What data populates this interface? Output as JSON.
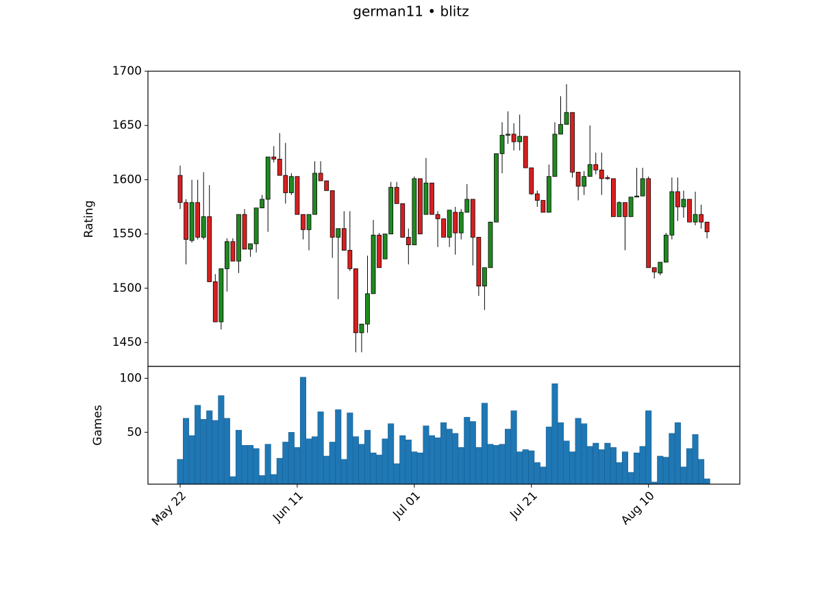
{
  "chart_data": [
    {
      "type": "candlestick",
      "title": "german11 • blitz",
      "ylabel": "Rating",
      "x": [
        0,
        1,
        2,
        3,
        4,
        5,
        6,
        7,
        8,
        9,
        10,
        11,
        12,
        13,
        14,
        15,
        16,
        17,
        18,
        19,
        20,
        21,
        22,
        23,
        24,
        25,
        26,
        27,
        28,
        29,
        30,
        31,
        32,
        33,
        34,
        35,
        36,
        37,
        38,
        39,
        40,
        41,
        42,
        43,
        44,
        45,
        46,
        47,
        48,
        49,
        50,
        51,
        52,
        53,
        54,
        55,
        56,
        57,
        58,
        59,
        60,
        61,
        62,
        63,
        64,
        65,
        66,
        67,
        68,
        69,
        70,
        71,
        72,
        73,
        74,
        75,
        76,
        77,
        78,
        79,
        80,
        81,
        82,
        83,
        84,
        85,
        86,
        87,
        88,
        89,
        90
      ],
      "open": [
        1604,
        1579,
        1544,
        1579,
        1547,
        1566,
        1506,
        1469,
        1518,
        1543,
        1525,
        1568,
        1536,
        1541,
        1574,
        1582,
        1621,
        1619,
        1604,
        1588,
        1603,
        1568,
        1554,
        1568,
        1606,
        1599,
        1590,
        1547,
        1555,
        1535,
        1518,
        1459,
        1467,
        1495,
        1549,
        1527,
        1550,
        1593,
        1578,
        1547,
        1540,
        1601,
        1568,
        1597,
        1568,
        1564,
        1547,
        1570,
        1551,
        1570,
        1582,
        1547,
        1502,
        1519,
        1561,
        1624,
        1641,
        1642,
        1635,
        1640,
        1611,
        1587,
        1581,
        1570,
        1603,
        1642,
        1651,
        1662,
        1607,
        1594,
        1603,
        1614,
        1609,
        1602,
        1601,
        1566,
        1579,
        1566,
        1584,
        1585,
        1601,
        1519,
        1514,
        1524,
        1549,
        1589,
        1575,
        1582,
        1561,
        1568,
        1561
      ],
      "high": [
        1613,
        1582,
        1600,
        1600,
        1607,
        1595,
        1513,
        1518,
        1546,
        1546,
        1568,
        1573,
        1541,
        1574,
        1586,
        1621,
        1631,
        1643,
        1634,
        1606,
        1603,
        1568,
        1568,
        1617,
        1617,
        1599,
        1590,
        1555,
        1571,
        1571,
        1518,
        1467,
        1530,
        1563,
        1551,
        1550,
        1598,
        1598,
        1578,
        1555,
        1603,
        1601,
        1620,
        1597,
        1571,
        1564,
        1572,
        1575,
        1573,
        1596,
        1582,
        1547,
        1519,
        1561,
        1624,
        1653,
        1663,
        1652,
        1660,
        1640,
        1611,
        1590,
        1581,
        1614,
        1653,
        1677,
        1688,
        1662,
        1607,
        1608,
        1650,
        1625,
        1625,
        1604,
        1601,
        1580,
        1579,
        1584,
        1611,
        1611,
        1603,
        1519,
        1524,
        1551,
        1602,
        1602,
        1590,
        1582,
        1589,
        1577,
        1561
      ],
      "low": [
        1573,
        1522,
        1542,
        1545,
        1545,
        1506,
        1469,
        1462,
        1497,
        1525,
        1514,
        1536,
        1529,
        1533,
        1574,
        1552,
        1616,
        1604,
        1578,
        1586,
        1568,
        1545,
        1535,
        1568,
        1599,
        1590,
        1528,
        1490,
        1535,
        1516,
        1441,
        1441,
        1459,
        1495,
        1519,
        1527,
        1550,
        1578,
        1547,
        1522,
        1540,
        1550,
        1568,
        1568,
        1538,
        1547,
        1538,
        1531,
        1545,
        1570,
        1521,
        1493,
        1480,
        1519,
        1561,
        1606,
        1633,
        1627,
        1627,
        1611,
        1586,
        1575,
        1570,
        1570,
        1603,
        1642,
        1651,
        1602,
        1581,
        1586,
        1603,
        1605,
        1586,
        1600,
        1566,
        1566,
        1535,
        1566,
        1584,
        1585,
        1519,
        1509,
        1512,
        1524,
        1545,
        1562,
        1565,
        1561,
        1558,
        1555,
        1546
      ],
      "close": [
        1579,
        1545,
        1579,
        1547,
        1566,
        1506,
        1469,
        1518,
        1543,
        1525,
        1568,
        1536,
        1541,
        1574,
        1582,
        1621,
        1619,
        1604,
        1588,
        1603,
        1568,
        1554,
        1568,
        1606,
        1599,
        1590,
        1547,
        1555,
        1535,
        1518,
        1459,
        1467,
        1495,
        1549,
        1519,
        1550,
        1593,
        1578,
        1547,
        1540,
        1601,
        1550,
        1597,
        1568,
        1564,
        1547,
        1572,
        1551,
        1570,
        1582,
        1547,
        1502,
        1519,
        1561,
        1624,
        1641,
        1642,
        1635,
        1640,
        1611,
        1587,
        1581,
        1570,
        1603,
        1642,
        1651,
        1662,
        1607,
        1594,
        1603,
        1614,
        1609,
        1601,
        1601,
        1566,
        1579,
        1566,
        1584,
        1585,
        1601,
        1519,
        1515,
        1524,
        1549,
        1589,
        1575,
        1582,
        1561,
        1568,
        1561,
        1552
      ],
      "up_color": "#1f8a1f",
      "down_color": "#d62020",
      "xlim": [
        -5.5,
        95.6
      ],
      "ylim": [
        1428,
        1700
      ],
      "yticks": [
        1450,
        1500,
        1550,
        1600,
        1650,
        1700
      ]
    },
    {
      "type": "bar",
      "ylabel": "Games",
      "color": "#1f77b4",
      "x": [
        0,
        1,
        2,
        3,
        4,
        5,
        6,
        7,
        8,
        9,
        10,
        11,
        12,
        13,
        14,
        15,
        16,
        17,
        18,
        19,
        20,
        21,
        22,
        23,
        24,
        25,
        26,
        27,
        28,
        29,
        30,
        31,
        32,
        33,
        34,
        35,
        36,
        37,
        38,
        39,
        40,
        41,
        42,
        43,
        44,
        45,
        46,
        47,
        48,
        49,
        50,
        51,
        52,
        53,
        54,
        55,
        56,
        57,
        58,
        59,
        60,
        61,
        62,
        63,
        64,
        65,
        66,
        67,
        68,
        69,
        70,
        71,
        72,
        73,
        74,
        75,
        76,
        77,
        78,
        79,
        80,
        81,
        82,
        83,
        84,
        85,
        86,
        87,
        88,
        89,
        90
      ],
      "values": [
        25,
        63,
        47,
        75,
        62,
        70,
        61,
        84,
        63,
        9,
        52,
        38,
        38,
        35,
        10,
        39,
        11,
        26,
        41,
        50,
        36,
        101,
        44,
        46,
        69,
        28,
        41,
        71,
        25,
        68,
        46,
        39,
        52,
        31,
        29,
        44,
        58,
        21,
        47,
        43,
        32,
        31,
        56,
        47,
        45,
        59,
        53,
        49,
        36,
        64,
        60,
        36,
        77,
        39,
        38,
        39,
        53,
        70,
        32,
        34,
        33,
        22,
        18,
        55,
        95,
        59,
        42,
        32,
        63,
        58,
        37,
        40,
        34,
        40,
        36,
        22,
        32,
        13,
        31,
        37,
        70,
        4,
        28,
        27,
        49,
        59,
        18,
        35,
        48,
        25,
        7
      ],
      "xlim": [
        -5.5,
        95.6
      ],
      "ylim": [
        2,
        111
      ],
      "yticks": [
        50,
        100
      ],
      "xticks": [
        {
          "value": 0,
          "label": "May 22"
        },
        {
          "value": 20,
          "label": "Jun 11"
        },
        {
          "value": 40,
          "label": "Jul 01"
        },
        {
          "value": 60,
          "label": "Jul 21"
        },
        {
          "value": 80,
          "label": "Aug 10"
        }
      ]
    }
  ]
}
